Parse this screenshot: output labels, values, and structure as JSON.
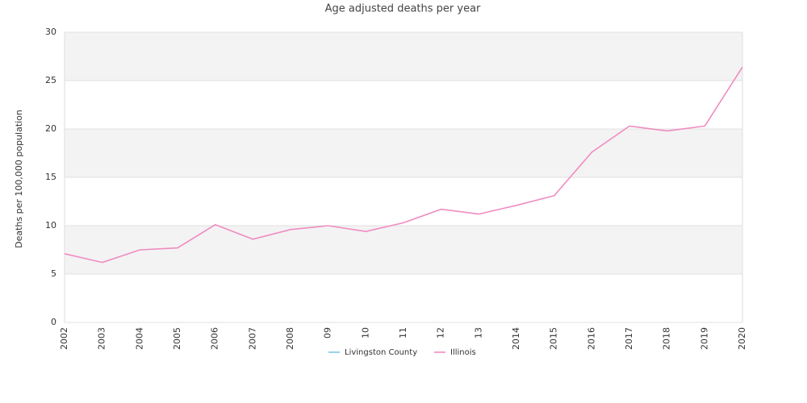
{
  "chart_data": {
    "type": "line",
    "title": "Age adjusted deaths per year",
    "y_label": "Deaths per 100,000 population",
    "categories": [
      "2002",
      "2003",
      "2004",
      "2005",
      "2006",
      "2007",
      "2008",
      "09",
      "10",
      "11",
      "12",
      "13",
      "2014",
      "2015",
      "2016",
      "2017",
      "2018",
      "2019",
      "2020"
    ],
    "series": [
      {
        "name": "Livingston County",
        "color": "#7ec8e3",
        "values": [
          null,
          null,
          null,
          null,
          null,
          null,
          null,
          null,
          null,
          null,
          null,
          null,
          null,
          null,
          null,
          null,
          null,
          null,
          null
        ]
      },
      {
        "name": "Illinois",
        "color": "#f08cc0",
        "values": [
          7.1,
          6.2,
          7.5,
          7.7,
          10.1,
          8.6,
          9.6,
          10.0,
          9.4,
          10.3,
          11.7,
          11.2,
          12.1,
          13.1,
          17.6,
          20.3,
          19.8,
          20.3,
          26.4
        ]
      }
    ],
    "ylim": [
      0,
      30
    ],
    "yticks": [
      0,
      5,
      10,
      15,
      20,
      25,
      30
    ],
    "grid": true,
    "legend": "bottom"
  }
}
